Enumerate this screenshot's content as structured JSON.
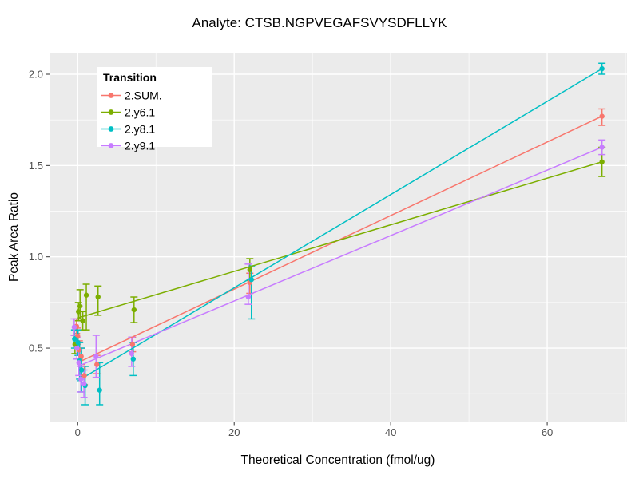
{
  "chart_data": {
    "type": "scatter",
    "subtype": "calibration-curve-with-errorbars-and-linear-fits",
    "title": "Analyte: CTSB.NGPVEGAFSVYSDFLLYK",
    "xlabel": "Theoretical Concentration (fmol/ug)",
    "ylabel": "Peak Area Ratio",
    "legend_title": "Transition",
    "legend_position": "inside-top-left",
    "grid": true,
    "panel_bg": "#EBEBEB",
    "grid_color": "#FFFFFF",
    "tick_label_color": "#4d4d4d",
    "tick_mark_color": "#333333",
    "xlim": [
      -3.6,
      70.2
    ],
    "ylim": [
      0.098,
      2.118
    ],
    "x_major_ticks": [
      0,
      20,
      40,
      60
    ],
    "x_tick_labels": [
      "0",
      "20",
      "40",
      "60"
    ],
    "x_minor_ticks": [
      10,
      30,
      50,
      70
    ],
    "y_major_ticks": [
      0.5,
      1.0,
      1.5,
      2.0
    ],
    "y_tick_labels": [
      "0.5",
      "1.0",
      "1.5",
      "2.0"
    ],
    "y_minor_ticks": [
      0.25,
      0.75,
      1.25,
      1.75
    ],
    "series": [
      {
        "name": "2.SUM.",
        "color": "#F8766D",
        "fit_line": {
          "x": [
            0,
            67
          ],
          "y": [
            0.42,
            1.77
          ]
        },
        "points": [
          {
            "x": -0.15,
            "y": 0.62,
            "lo": 0.58,
            "hi": 0.66
          },
          {
            "x": 0.0,
            "y": 0.565,
            "lo": 0.52,
            "hi": 0.61
          },
          {
            "x": 0.2,
            "y": 0.49,
            "lo": 0.44,
            "hi": 0.54
          },
          {
            "x": 0.45,
            "y": 0.455,
            "lo": 0.41,
            "hi": 0.5
          },
          {
            "x": 0.85,
            "y": 0.35,
            "lo": 0.3,
            "hi": 0.4
          },
          {
            "x": 2.45,
            "y": 0.41,
            "lo": 0.36,
            "hi": 0.46
          },
          {
            "x": 7.0,
            "y": 0.52,
            "lo": 0.48,
            "hi": 0.56
          },
          {
            "x": 22.0,
            "y": 0.86,
            "lo": 0.8,
            "hi": 0.91
          },
          {
            "x": 67.0,
            "y": 1.77,
            "lo": 1.72,
            "hi": 1.81
          }
        ]
      },
      {
        "name": "2.y6.1",
        "color": "#7CAE00",
        "fit_line": {
          "x": [
            0,
            67
          ],
          "y": [
            0.665,
            1.52
          ]
        },
        "points": [
          {
            "x": -0.35,
            "y": 0.52,
            "lo": 0.47,
            "hi": 0.57
          },
          {
            "x": 0.1,
            "y": 0.7,
            "lo": 0.65,
            "hi": 0.75
          },
          {
            "x": 0.3,
            "y": 0.73,
            "lo": 0.66,
            "hi": 0.82
          },
          {
            "x": 0.65,
            "y": 0.65,
            "lo": 0.6,
            "hi": 0.7
          },
          {
            "x": 1.1,
            "y": 0.79,
            "lo": 0.6,
            "hi": 0.85
          },
          {
            "x": 2.6,
            "y": 0.78,
            "lo": 0.68,
            "hi": 0.84
          },
          {
            "x": 7.2,
            "y": 0.71,
            "lo": 0.64,
            "hi": 0.78
          },
          {
            "x": 22.0,
            "y": 0.93,
            "lo": 0.87,
            "hi": 0.99
          },
          {
            "x": 67.0,
            "y": 1.52,
            "lo": 1.44,
            "hi": 1.6
          }
        ]
      },
      {
        "name": "2.y8.1",
        "color": "#00BFC4",
        "fit_line": {
          "x": [
            0,
            67
          ],
          "y": [
            0.32,
            2.03
          ]
        },
        "points": [
          {
            "x": -0.4,
            "y": 0.55,
            "lo": 0.5,
            "hi": 0.6
          },
          {
            "x": 0.05,
            "y": 0.53,
            "lo": 0.46,
            "hi": 0.6
          },
          {
            "x": 0.25,
            "y": 0.43,
            "lo": 0.33,
            "hi": 0.53
          },
          {
            "x": 0.5,
            "y": 0.38,
            "lo": 0.26,
            "hi": 0.5
          },
          {
            "x": 0.95,
            "y": 0.295,
            "lo": 0.19,
            "hi": 0.4
          },
          {
            "x": 2.8,
            "y": 0.27,
            "lo": 0.19,
            "hi": 0.42
          },
          {
            "x": 7.1,
            "y": 0.44,
            "lo": 0.35,
            "hi": 0.53
          },
          {
            "x": 22.2,
            "y": 0.875,
            "lo": 0.66,
            "hi": 0.95
          },
          {
            "x": 67.0,
            "y": 2.03,
            "lo": 2.0,
            "hi": 2.06
          }
        ]
      },
      {
        "name": "2.y9.1",
        "color": "#C77CFF",
        "fit_line": {
          "x": [
            0,
            67
          ],
          "y": [
            0.4,
            1.6
          ]
        },
        "points": [
          {
            "x": -0.45,
            "y": 0.615,
            "lo": 0.57,
            "hi": 0.66
          },
          {
            "x": -0.1,
            "y": 0.5,
            "lo": 0.44,
            "hi": 0.56
          },
          {
            "x": 0.15,
            "y": 0.42,
            "lo": 0.35,
            "hi": 0.49
          },
          {
            "x": 0.4,
            "y": 0.33,
            "lo": 0.26,
            "hi": 0.4
          },
          {
            "x": 0.8,
            "y": 0.305,
            "lo": 0.23,
            "hi": 0.38
          },
          {
            "x": 2.35,
            "y": 0.455,
            "lo": 0.34,
            "hi": 0.57
          },
          {
            "x": 6.9,
            "y": 0.47,
            "lo": 0.4,
            "hi": 0.56
          },
          {
            "x": 21.8,
            "y": 0.78,
            "lo": 0.74,
            "hi": 0.96
          },
          {
            "x": 67.0,
            "y": 1.6,
            "lo": 1.56,
            "hi": 1.64
          }
        ]
      }
    ]
  }
}
